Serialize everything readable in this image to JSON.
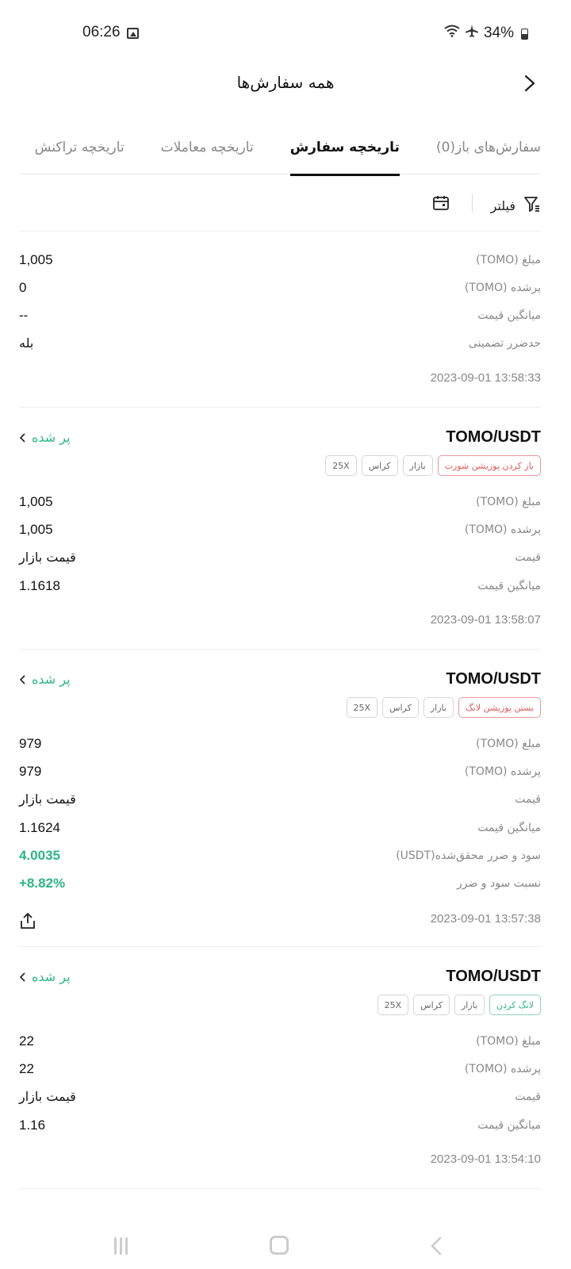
{
  "status_bar": {
    "time": "06:26",
    "battery": "34%"
  },
  "header": {
    "title": "همه سفارش‌ها"
  },
  "tabs": [
    {
      "label": "سفارش‌های باز(0)",
      "active": false
    },
    {
      "label": "تاریخچه سفارش",
      "active": true
    },
    {
      "label": "تاریخچه معاملات",
      "active": false
    },
    {
      "label": "تاریخچه تراکنش",
      "active": false
    }
  ],
  "filter": {
    "label": "فیلتر"
  },
  "orders": [
    {
      "rows": [
        {
          "label": "مبلغ (TOMO)",
          "value": "1,005"
        },
        {
          "label": "پرشده (TOMO)",
          "value": "0"
        },
        {
          "label": "میانگین قیمت",
          "value": "--"
        },
        {
          "label": "حدضرر تضمینی",
          "value": "بله"
        }
      ],
      "timestamp": "2023-09-01 13:58:33"
    },
    {
      "pair": "TOMO/USDT",
      "status": "پر شده",
      "tags": [
        "باز کردن پوزیشن شورت",
        "بازار",
        "کراس",
        "25X"
      ],
      "rows": [
        {
          "label": "مبلغ (TOMO)",
          "value": "1,005"
        },
        {
          "label": "پرشده (TOMO)",
          "value": "1,005"
        },
        {
          "label": "قیمت",
          "value": "قیمت بازار"
        },
        {
          "label": "میانگین قیمت",
          "value": "1.1618"
        }
      ],
      "timestamp": "2023-09-01 13:58:07"
    },
    {
      "pair": "TOMO/USDT",
      "status": "پر شده",
      "tags": [
        "بستن پوزیشن لانگ",
        "بازار",
        "کراس",
        "25X"
      ],
      "rows": [
        {
          "label": "مبلغ (TOMO)",
          "value": "979"
        },
        {
          "label": "پرشده (TOMO)",
          "value": "979"
        },
        {
          "label": "قیمت",
          "value": "قیمت بازار"
        },
        {
          "label": "میانگین قیمت",
          "value": "1.1624"
        },
        {
          "label": "سود و ضرر محقق‌شده(USDT)",
          "value": "4.0035"
        },
        {
          "label": "نسبت سود و ضرر",
          "value": "+8.82%"
        }
      ],
      "timestamp": "2023-09-01 13:57:38"
    },
    {
      "pair": "TOMO/USDT",
      "status": "پر شده",
      "tags": [
        "لانگ کردن",
        "بازار",
        "کراس",
        "25X"
      ],
      "rows": [
        {
          "label": "مبلغ (TOMO)",
          "value": "22"
        },
        {
          "label": "پرشده (TOMO)",
          "value": "22"
        },
        {
          "label": "قیمت",
          "value": "قیمت بازار"
        },
        {
          "label": "میانگین قیمت",
          "value": "1.16"
        }
      ],
      "timestamp": "2023-09-01 13:54:10"
    }
  ],
  "colors": {
    "green": "#2db585",
    "red": "#e05a5a"
  },
  "icons": [
    "image-icon",
    "wifi-icon",
    "airplane-icon",
    "battery-icon",
    "back-chevron-icon",
    "filter-icon",
    "calendar-icon",
    "chevron-left-icon",
    "share-icon"
  ]
}
